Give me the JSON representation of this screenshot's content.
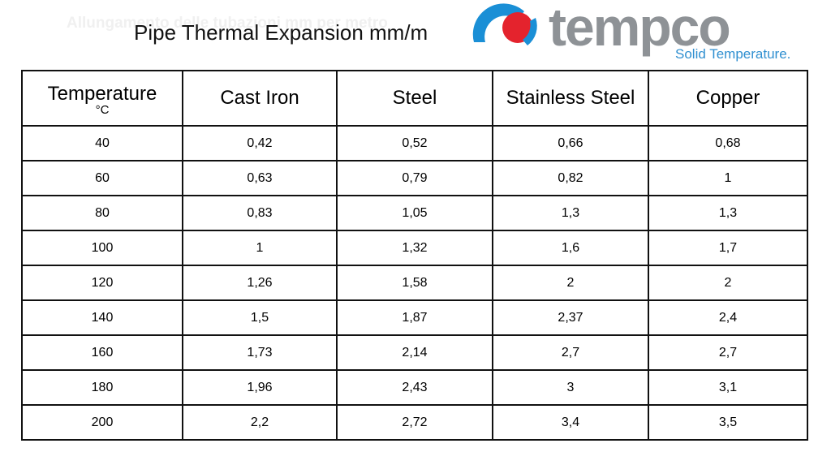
{
  "page": {
    "ghost_title": "Allungamento delle tubazioni mm per metro",
    "title": "Pipe Thermal Expansion mm/m"
  },
  "logo": {
    "name": "tempco",
    "tagline": "Solid Temperature.",
    "colors": {
      "blue": "#1a8fd6",
      "red": "#e4232d",
      "gray": "#8e9296"
    }
  },
  "table": {
    "headers": {
      "temperature": "Temperature",
      "temperature_unit": "°C",
      "cast_iron": "Cast Iron",
      "steel": "Steel",
      "stainless_steel": "Stainless Steel",
      "copper": "Copper"
    },
    "rows": [
      [
        "40",
        "0,42",
        "0,52",
        "0,66",
        "0,68"
      ],
      [
        "60",
        "0,63",
        "0,79",
        "0,82",
        "1"
      ],
      [
        "80",
        "0,83",
        "1,05",
        "1,3",
        "1,3"
      ],
      [
        "100",
        "1",
        "1,32",
        "1,6",
        "1,7"
      ],
      [
        "120",
        "1,26",
        "1,58",
        "2",
        "2"
      ],
      [
        "140",
        "1,5",
        "1,87",
        "2,37",
        "2,4"
      ],
      [
        "160",
        "1,73",
        "2,14",
        "2,7",
        "2,7"
      ],
      [
        "180",
        "1,96",
        "2,43",
        "3",
        "3,1"
      ],
      [
        "200",
        "2,2",
        "2,72",
        "3,4",
        "3,5"
      ]
    ]
  }
}
